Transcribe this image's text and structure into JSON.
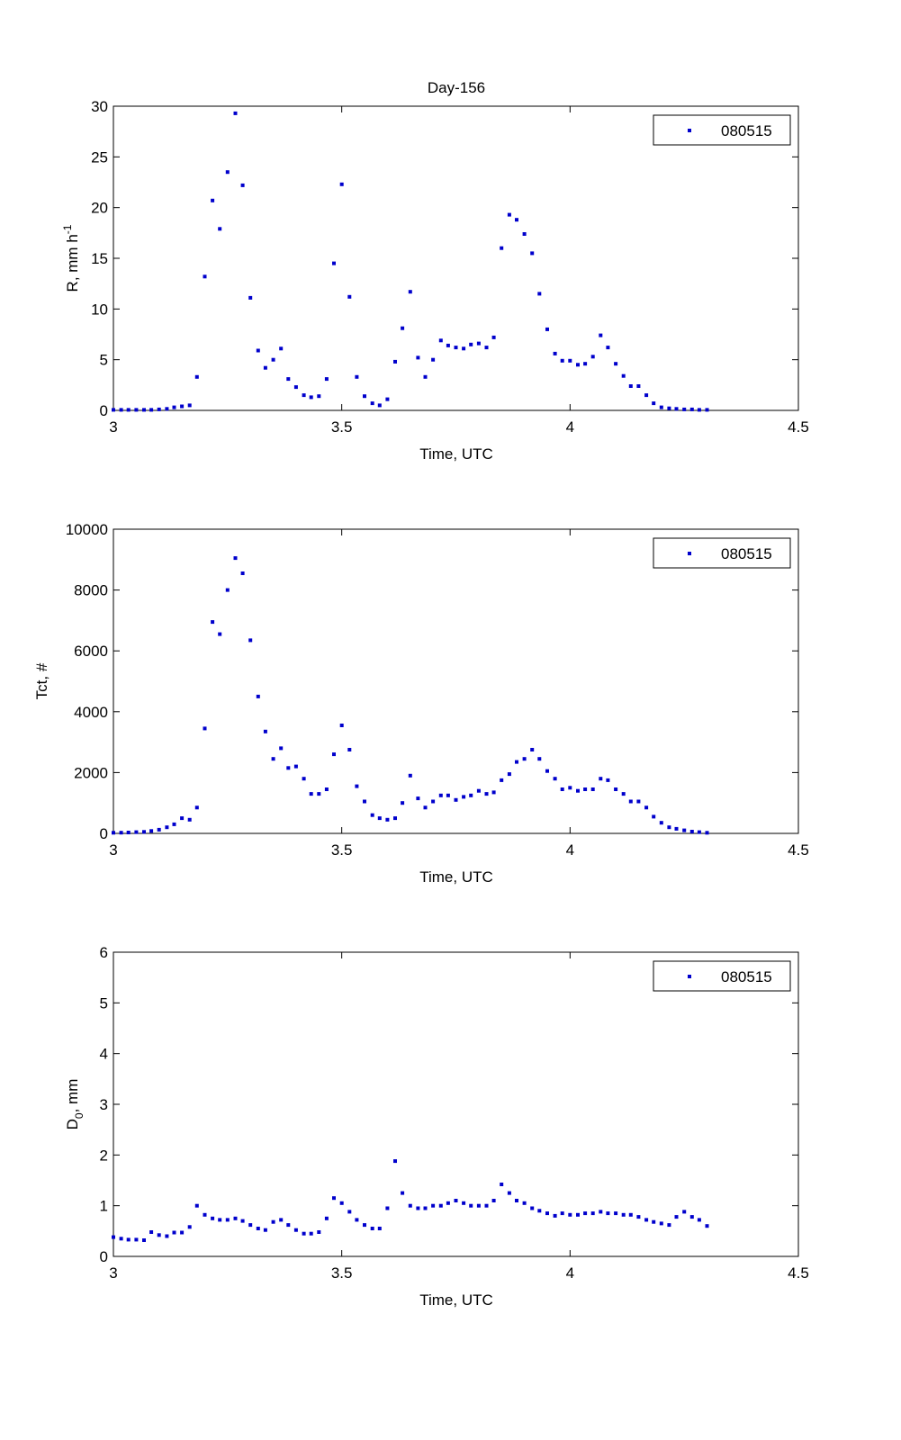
{
  "figure_title": "Day-156",
  "colors": {
    "marker": "#0000cc",
    "axis": "#000000",
    "background": "#ffffff"
  },
  "chart_data": [
    {
      "type": "scatter",
      "title": "Day-156",
      "xlabel": "Time, UTC",
      "ylabel": "R, mm h",
      "ylabel_sup": "-1",
      "xlim": [
        3,
        4.5
      ],
      "ylim": [
        0,
        30
      ],
      "xticks": [
        3,
        3.5,
        4,
        4.5
      ],
      "yticks": [
        0,
        5,
        10,
        15,
        20,
        25,
        30
      ],
      "grid": false,
      "legend": "080515",
      "legend_position": "top-right",
      "series": [
        {
          "name": "080515",
          "x": [
            3.0,
            3.017,
            3.033,
            3.05,
            3.067,
            3.083,
            3.1,
            3.117,
            3.133,
            3.15,
            3.167,
            3.183,
            3.2,
            3.217,
            3.233,
            3.25,
            3.267,
            3.283,
            3.3,
            3.317,
            3.333,
            3.35,
            3.367,
            3.383,
            3.4,
            3.417,
            3.433,
            3.45,
            3.467,
            3.483,
            3.5,
            3.517,
            3.533,
            3.55,
            3.567,
            3.583,
            3.6,
            3.617,
            3.633,
            3.65,
            3.667,
            3.683,
            3.7,
            3.717,
            3.733,
            3.75,
            3.767,
            3.783,
            3.8,
            3.817,
            3.833,
            3.85,
            3.867,
            3.883,
            3.9,
            3.917,
            3.933,
            3.95,
            3.967,
            3.983,
            4.0,
            4.017,
            4.033,
            4.05,
            4.067,
            4.083,
            4.1,
            4.117,
            4.133,
            4.15,
            4.167,
            4.183,
            4.2,
            4.217,
            4.233,
            4.25,
            4.267,
            4.283,
            4.3
          ],
          "y": [
            0.05,
            0.05,
            0.05,
            0.05,
            0.05,
            0.05,
            0.1,
            0.15,
            0.3,
            0.4,
            0.5,
            3.3,
            13.2,
            20.7,
            17.9,
            23.5,
            29.3,
            22.2,
            11.1,
            5.9,
            4.2,
            5.0,
            6.1,
            3.1,
            2.3,
            1.5,
            1.3,
            1.4,
            3.1,
            14.5,
            22.3,
            11.2,
            3.3,
            1.4,
            0.7,
            0.5,
            1.1,
            4.8,
            8.1,
            11.7,
            5.2,
            3.3,
            5.0,
            6.9,
            6.4,
            6.2,
            6.1,
            6.5,
            6.6,
            6.2,
            7.2,
            16.0,
            19.3,
            18.8,
            17.4,
            15.5,
            11.5,
            8.0,
            5.6,
            4.9,
            4.9,
            4.5,
            4.6,
            5.3,
            7.4,
            6.2,
            4.6,
            3.4,
            2.4,
            2.4,
            1.5,
            0.7,
            0.3,
            0.2,
            0.15,
            0.1,
            0.1,
            0.05,
            0.05
          ]
        }
      ]
    },
    {
      "type": "scatter",
      "title": "",
      "xlabel": "Time, UTC",
      "ylabel": "Tct, #",
      "xlim": [
        3,
        4.5
      ],
      "ylim": [
        0,
        10000
      ],
      "xticks": [
        3,
        3.5,
        4,
        4.5
      ],
      "yticks": [
        0,
        2000,
        4000,
        6000,
        8000,
        10000
      ],
      "grid": false,
      "legend": "080515",
      "legend_position": "top-right",
      "series": [
        {
          "name": "080515",
          "x": [
            3.0,
            3.017,
            3.033,
            3.05,
            3.067,
            3.083,
            3.1,
            3.117,
            3.133,
            3.15,
            3.167,
            3.183,
            3.2,
            3.217,
            3.233,
            3.25,
            3.267,
            3.283,
            3.3,
            3.317,
            3.333,
            3.35,
            3.367,
            3.383,
            3.4,
            3.417,
            3.433,
            3.45,
            3.467,
            3.483,
            3.5,
            3.517,
            3.533,
            3.55,
            3.567,
            3.583,
            3.6,
            3.617,
            3.633,
            3.65,
            3.667,
            3.683,
            3.7,
            3.717,
            3.733,
            3.75,
            3.767,
            3.783,
            3.8,
            3.817,
            3.833,
            3.85,
            3.867,
            3.883,
            3.9,
            3.917,
            3.933,
            3.95,
            3.967,
            3.983,
            4.0,
            4.017,
            4.033,
            4.05,
            4.067,
            4.083,
            4.1,
            4.117,
            4.133,
            4.15,
            4.167,
            4.183,
            4.2,
            4.217,
            4.233,
            4.25,
            4.267,
            4.283,
            4.3
          ],
          "y": [
            20,
            25,
            30,
            40,
            50,
            80,
            120,
            200,
            300,
            500,
            450,
            850,
            3450,
            6950,
            6550,
            8000,
            9050,
            8550,
            6350,
            4500,
            3350,
            2450,
            2800,
            2150,
            2200,
            1800,
            1300,
            1300,
            1450,
            2600,
            3550,
            2750,
            1550,
            1050,
            600,
            500,
            450,
            500,
            1000,
            1900,
            1150,
            850,
            1050,
            1250,
            1250,
            1100,
            1200,
            1250,
            1400,
            1300,
            1350,
            1750,
            1950,
            2350,
            2450,
            2750,
            2450,
            2050,
            1800,
            1450,
            1500,
            1400,
            1450,
            1450,
            1800,
            1750,
            1450,
            1300,
            1050,
            1050,
            850,
            550,
            350,
            200,
            150,
            100,
            60,
            40,
            20
          ]
        }
      ]
    },
    {
      "type": "scatter",
      "title": "",
      "xlabel": "Time, UTC",
      "ylabel": "D",
      "ylabel_sub": "0",
      "ylabel_tail": ", mm",
      "xlim": [
        3,
        4.5
      ],
      "ylim": [
        0,
        6
      ],
      "xticks": [
        3,
        3.5,
        4,
        4.5
      ],
      "yticks": [
        0,
        1,
        2,
        3,
        4,
        5,
        6
      ],
      "grid": false,
      "legend": "080515",
      "legend_position": "top-right",
      "series": [
        {
          "name": "080515",
          "x": [
            3.0,
            3.017,
            3.033,
            3.05,
            3.067,
            3.083,
            3.1,
            3.117,
            3.133,
            3.15,
            3.167,
            3.183,
            3.2,
            3.217,
            3.233,
            3.25,
            3.267,
            3.283,
            3.3,
            3.317,
            3.333,
            3.35,
            3.367,
            3.383,
            3.4,
            3.417,
            3.433,
            3.45,
            3.467,
            3.483,
            3.5,
            3.517,
            3.533,
            3.55,
            3.567,
            3.583,
            3.6,
            3.617,
            3.633,
            3.65,
            3.667,
            3.683,
            3.7,
            3.717,
            3.733,
            3.75,
            3.767,
            3.783,
            3.8,
            3.817,
            3.833,
            3.85,
            3.867,
            3.883,
            3.9,
            3.917,
            3.933,
            3.95,
            3.967,
            3.983,
            4.0,
            4.017,
            4.033,
            4.05,
            4.067,
            4.083,
            4.1,
            4.117,
            4.133,
            4.15,
            4.167,
            4.183,
            4.2,
            4.217,
            4.233,
            4.25,
            4.267,
            4.283,
            4.3
          ],
          "y": [
            0.38,
            0.35,
            0.33,
            0.33,
            0.32,
            0.48,
            0.42,
            0.4,
            0.47,
            0.47,
            0.58,
            1.0,
            0.82,
            0.75,
            0.72,
            0.72,
            0.75,
            0.7,
            0.62,
            0.55,
            0.52,
            0.68,
            0.72,
            0.62,
            0.52,
            0.45,
            0.45,
            0.48,
            0.75,
            1.15,
            1.05,
            0.88,
            0.72,
            0.62,
            0.55,
            0.55,
            0.95,
            1.88,
            1.25,
            1.0,
            0.95,
            0.95,
            1.0,
            1.0,
            1.05,
            1.1,
            1.05,
            1.0,
            1.0,
            1.0,
            1.1,
            1.42,
            1.25,
            1.1,
            1.05,
            0.95,
            0.9,
            0.85,
            0.8,
            0.85,
            0.82,
            0.82,
            0.85,
            0.85,
            0.88,
            0.85,
            0.85,
            0.82,
            0.82,
            0.78,
            0.72,
            0.68,
            0.65,
            0.62,
            0.78,
            0.88,
            0.78,
            0.72,
            0.6
          ]
        }
      ]
    }
  ]
}
